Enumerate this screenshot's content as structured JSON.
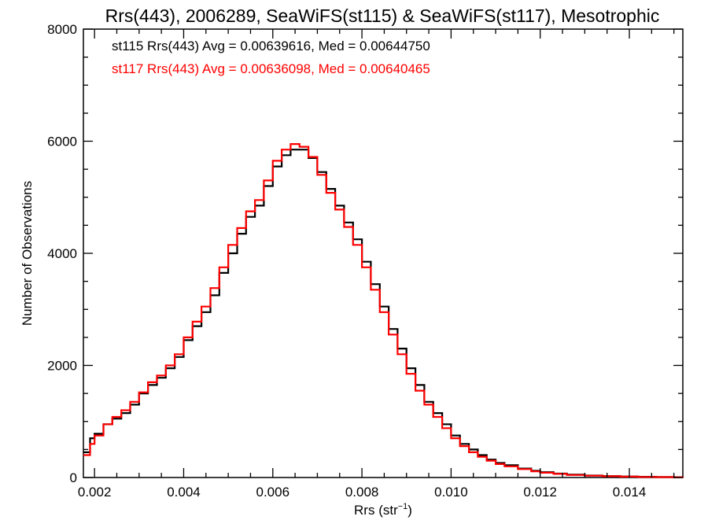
{
  "chart_data": {
    "type": "line",
    "step": true,
    "title": "Rrs(443), 2006289, SeaWiFS(st115) & SeaWiFS(st117), Mesotrophic",
    "xlabel_base": "Rrs (str",
    "xlabel_sup": "−1",
    "xlabel_close": ")",
    "ylabel": "Number of Observations",
    "xlim": [
      0.00175,
      0.0152
    ],
    "ylim": [
      0,
      8000
    ],
    "xticks": [
      0.002,
      0.004,
      0.006,
      0.008,
      0.01,
      0.012,
      0.014
    ],
    "xtick_labels": [
      "0.002",
      "0.004",
      "0.006",
      "0.008",
      "0.010",
      "0.012",
      "0.014"
    ],
    "yticks": [
      0,
      2000,
      4000,
      6000,
      8000
    ],
    "ytick_labels": [
      "0",
      "2000",
      "4000",
      "6000",
      "8000"
    ],
    "grid": false,
    "annotations": [
      {
        "text": "st115 Rrs(443) Avg = 0.00639616, Med = 0.00644750",
        "color": "#000000"
      },
      {
        "text": "st117 Rrs(443) Avg = 0.00636098, Med = 0.00640465",
        "color": "#ff0000"
      }
    ],
    "series": [
      {
        "color": "#000000",
        "x": [
          0.00175,
          0.0019,
          0.002,
          0.0022,
          0.0024,
          0.0026,
          0.0028,
          0.003,
          0.0032,
          0.0034,
          0.0036,
          0.0038,
          0.004,
          0.0042,
          0.0044,
          0.0046,
          0.0048,
          0.005,
          0.0052,
          0.0054,
          0.0056,
          0.0058,
          0.006,
          0.0062,
          0.0064,
          0.0066,
          0.0068,
          0.007,
          0.0072,
          0.0074,
          0.0076,
          0.0078,
          0.008,
          0.0082,
          0.0084,
          0.0086,
          0.0088,
          0.009,
          0.0092,
          0.0094,
          0.0096,
          0.0098,
          0.01,
          0.0102,
          0.0104,
          0.0106,
          0.0108,
          0.011,
          0.0112,
          0.0115,
          0.0118,
          0.012,
          0.0123,
          0.0126,
          0.013,
          0.0134,
          0.0138,
          0.0142,
          0.0146,
          0.015,
          0.0152
        ],
        "y": [
          450,
          700,
          780,
          950,
          1050,
          1150,
          1300,
          1500,
          1650,
          1780,
          1950,
          2150,
          2450,
          2700,
          2950,
          3250,
          3650,
          4000,
          4350,
          4650,
          4850,
          5200,
          5550,
          5750,
          5850,
          5850,
          5700,
          5450,
          5150,
          4850,
          4550,
          4250,
          3850,
          3450,
          3050,
          2650,
          2300,
          1950,
          1650,
          1350,
          1150,
          950,
          750,
          600,
          500,
          400,
          320,
          260,
          220,
          160,
          120,
          95,
          70,
          50,
          35,
          25,
          18,
          12,
          8,
          5,
          4
        ]
      },
      {
        "color": "#ff0000",
        "x": [
          0.00175,
          0.0019,
          0.002,
          0.0022,
          0.0024,
          0.0026,
          0.0028,
          0.003,
          0.0032,
          0.0034,
          0.0036,
          0.0038,
          0.004,
          0.0042,
          0.0044,
          0.0046,
          0.0048,
          0.005,
          0.0052,
          0.0054,
          0.0056,
          0.0058,
          0.006,
          0.0062,
          0.0064,
          0.0066,
          0.0068,
          0.007,
          0.0072,
          0.0074,
          0.0076,
          0.0078,
          0.008,
          0.0082,
          0.0084,
          0.0086,
          0.0088,
          0.009,
          0.0092,
          0.0094,
          0.0096,
          0.0098,
          0.01,
          0.0102,
          0.0104,
          0.0106,
          0.0108,
          0.011,
          0.0112,
          0.0115,
          0.0118,
          0.012,
          0.0123,
          0.0126,
          0.013,
          0.0134,
          0.0138,
          0.0142,
          0.0146,
          0.015,
          0.0152
        ],
        "y": [
          400,
          600,
          750,
          950,
          1080,
          1200,
          1350,
          1520,
          1700,
          1820,
          2000,
          2200,
          2500,
          2780,
          3050,
          3380,
          3750,
          4150,
          4450,
          4750,
          4950,
          5300,
          5650,
          5850,
          5950,
          5900,
          5720,
          5400,
          5080,
          4780,
          4470,
          4150,
          3750,
          3350,
          2950,
          2550,
          2200,
          1850,
          1550,
          1300,
          1080,
          880,
          700,
          560,
          450,
          370,
          300,
          240,
          200,
          150,
          110,
          85,
          65,
          45,
          32,
          22,
          15,
          10,
          7,
          4,
          3
        ]
      }
    ]
  }
}
